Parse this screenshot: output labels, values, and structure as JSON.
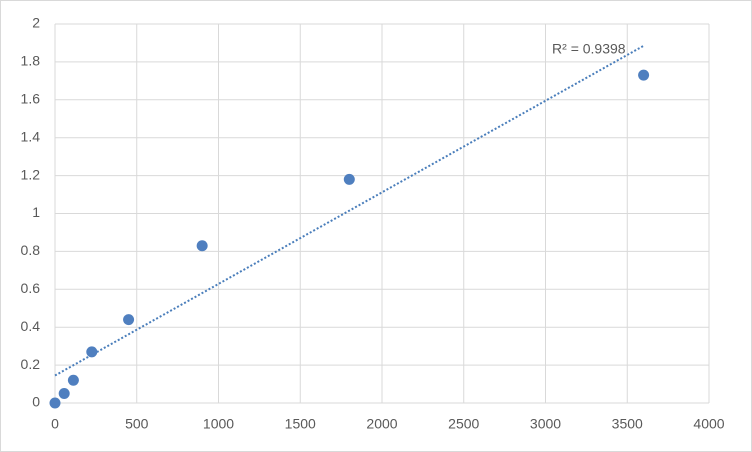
{
  "chart_data": {
    "type": "scatter",
    "x": [
      0,
      56.25,
      112.5,
      225,
      450,
      900,
      1800,
      3600
    ],
    "values": [
      0,
      0.05,
      0.12,
      0.27,
      0.44,
      0.83,
      1.18,
      1.73
    ],
    "color": "#4f7fbf",
    "trendline": {
      "x": [
        0,
        3600
      ],
      "y": [
        0.145,
        1.885
      ],
      "color": "#4a7ebb",
      "label": "R² = 0.9398"
    },
    "xlim": [
      0,
      4000
    ],
    "xticks": [
      0,
      500,
      1000,
      1500,
      2000,
      2500,
      3000,
      3500,
      4000
    ],
    "ylim": [
      0,
      2
    ],
    "yticks": [
      0,
      0.2,
      0.4,
      0.6,
      0.8,
      1,
      1.2,
      1.4,
      1.6,
      1.8,
      2
    ],
    "grid": true
  }
}
